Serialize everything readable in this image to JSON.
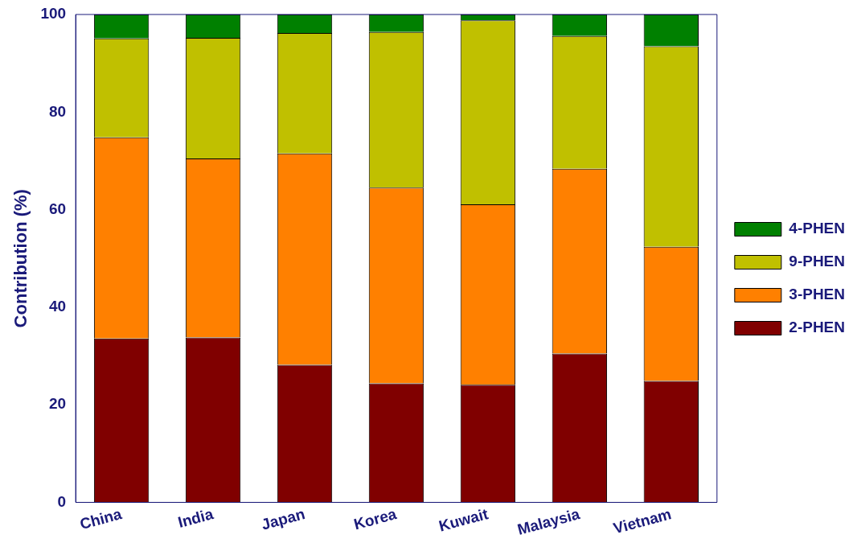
{
  "chart_data": {
    "type": "bar",
    "stacked": true,
    "ylabel": "Contribution (%)",
    "categories": [
      "China",
      "India",
      "Japan",
      "Korea",
      "Kuwait",
      "Malaysia",
      "Vietnam"
    ],
    "series": [
      {
        "name": "2-PHEN",
        "color": "#800000",
        "values": [
          33.6,
          33.8,
          28.2,
          24.4,
          24.1,
          30.5,
          24.9
        ]
      },
      {
        "name": "3-PHEN",
        "color": "#ff8000",
        "values": [
          41.2,
          36.7,
          43.3,
          40.1,
          37.0,
          37.9,
          27.5
        ]
      },
      {
        "name": "9-PHEN",
        "color": "#c0c000",
        "values": [
          20.3,
          24.7,
          24.7,
          31.9,
          37.7,
          27.2,
          41.1
        ]
      },
      {
        "name": "4-PHEN",
        "color": "#008000",
        "values": [
          4.9,
          4.8,
          3.8,
          3.6,
          1.2,
          4.4,
          6.5
        ]
      }
    ],
    "ylim": [
      0,
      100
    ],
    "yticks": [
      0,
      20,
      40,
      60,
      80,
      100
    ],
    "grid": false,
    "legend": "right"
  }
}
